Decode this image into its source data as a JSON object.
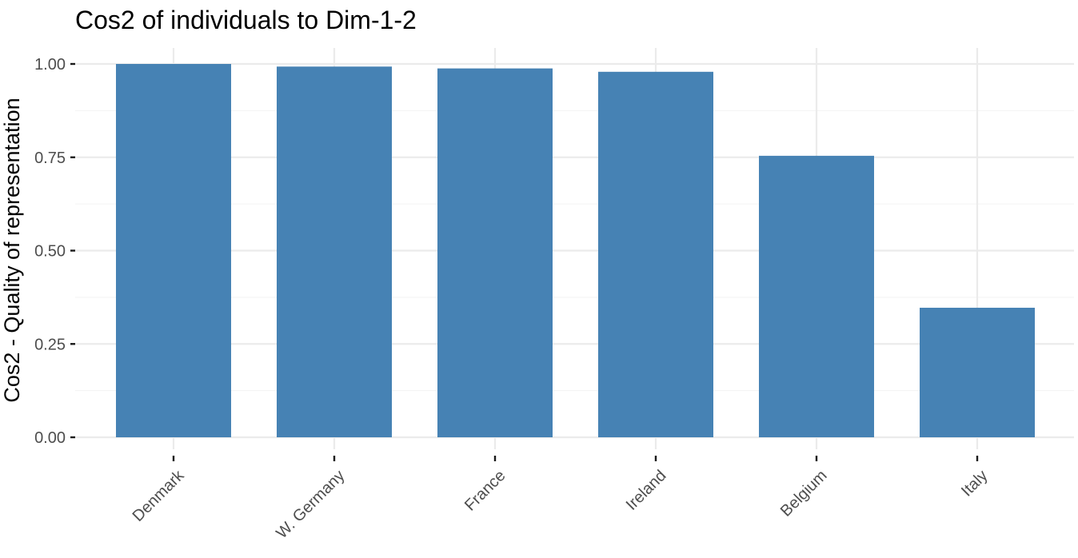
{
  "chart_data": {
    "type": "bar",
    "title": "Cos2 of individuals to Dim-1-2",
    "xlabel": "",
    "ylabel": "Cos2 - Quality of representation",
    "categories": [
      "Denmark",
      "W. Germany",
      "France",
      "Ireland",
      "Belgium",
      "Italy"
    ],
    "values": [
      1.0,
      0.993,
      0.988,
      0.979,
      0.754,
      0.347
    ],
    "ylim": [
      0,
      1.0
    ],
    "y_ticks": [
      0.0,
      0.25,
      0.5,
      0.75,
      1.0
    ],
    "y_tick_labels": [
      "0.00",
      "0.25",
      "0.50",
      "0.75",
      "1.00"
    ],
    "bar_color": "#4682B4",
    "grid": true,
    "x_tick_label_rotation_deg": -45
  }
}
